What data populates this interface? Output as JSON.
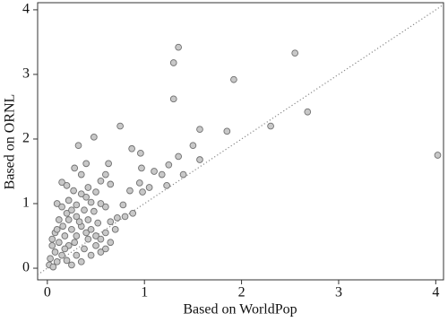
{
  "chart_data": {
    "type": "scatter",
    "x_label": "Based on WorldPop",
    "y_label": "Based on ORNL",
    "color": "#c8c8c8",
    "edge_color": "#707070",
    "identity_line": true,
    "xlim": [
      -0.1,
      4.08
    ],
    "ylim": [
      -0.18,
      4.11
    ],
    "xticks": [
      0,
      1,
      2,
      3,
      4
    ],
    "yticks": [
      0,
      1,
      2,
      3,
      4
    ],
    "x": [
      1.35,
      1.3,
      2.55,
      1.92,
      1.3,
      0.75,
      2.3,
      2.68,
      1.57,
      1.85,
      4.02,
      0.48,
      0.32,
      0.4,
      0.87,
      0.96,
      1.5,
      1.57,
      1.35,
      1.25,
      1.1,
      0.97,
      1.05,
      0.95,
      0.98,
      1.18,
      1.4,
      1.23,
      0.63,
      0.65,
      0.6,
      0.35,
      0.28,
      0.55,
      0.15,
      0.2,
      0.42,
      0.5,
      0.85,
      0.78,
      0.72,
      0.8,
      0.88,
      0.65,
      0.6,
      0.55,
      0.45,
      0.35,
      0.27,
      0.1,
      0.15,
      0.22,
      0.3,
      0.38,
      0.48,
      0.52,
      0.42,
      0.3,
      0.2,
      0.12,
      0.08,
      0.05,
      0.03,
      0.02,
      0.06,
      0.1,
      0.15,
      0.12,
      0.18,
      0.22,
      0.25,
      0.3,
      0.35,
      0.4,
      0.45,
      0.5,
      0.55,
      0.6,
      0.38,
      0.3,
      0.2,
      0.25,
      0.35,
      0.45,
      0.55,
      0.65,
      0.6,
      0.16,
      0.08,
      0.28,
      0.5,
      0.42,
      0.18,
      0.33,
      0.1,
      0.22,
      0.05,
      0.7,
      0.25,
      0.4
    ],
    "values": [
      3.42,
      3.18,
      3.33,
      2.92,
      2.62,
      2.2,
      2.2,
      2.42,
      2.15,
      2.12,
      1.75,
      2.03,
      1.9,
      1.62,
      1.85,
      1.78,
      1.9,
      1.68,
      1.73,
      1.6,
      1.5,
      1.55,
      1.25,
      1.32,
      1.18,
      1.45,
      1.45,
      1.28,
      1.62,
      1.3,
      1.45,
      1.45,
      1.55,
      1.35,
      1.33,
      1.28,
      1.25,
      1.18,
      1.2,
      0.98,
      0.78,
      0.8,
      0.85,
      0.72,
      0.95,
      1.0,
      1.02,
      1.15,
      1.2,
      1.0,
      0.95,
      1.05,
      0.98,
      0.9,
      0.88,
      0.7,
      0.75,
      0.8,
      0.85,
      0.75,
      0.55,
      0.35,
      0.15,
      0.05,
      0.02,
      0.1,
      0.2,
      0.4,
      0.5,
      0.35,
      0.6,
      0.5,
      0.65,
      0.55,
      0.6,
      0.5,
      0.45,
      0.55,
      0.3,
      0.2,
      0.12,
      0.05,
      0.1,
      0.2,
      0.25,
      0.4,
      0.3,
      0.65,
      0.25,
      0.4,
      0.35,
      0.45,
      0.3,
      0.72,
      0.6,
      0.75,
      0.45,
      0.6,
      0.9,
      1.1
    ]
  }
}
